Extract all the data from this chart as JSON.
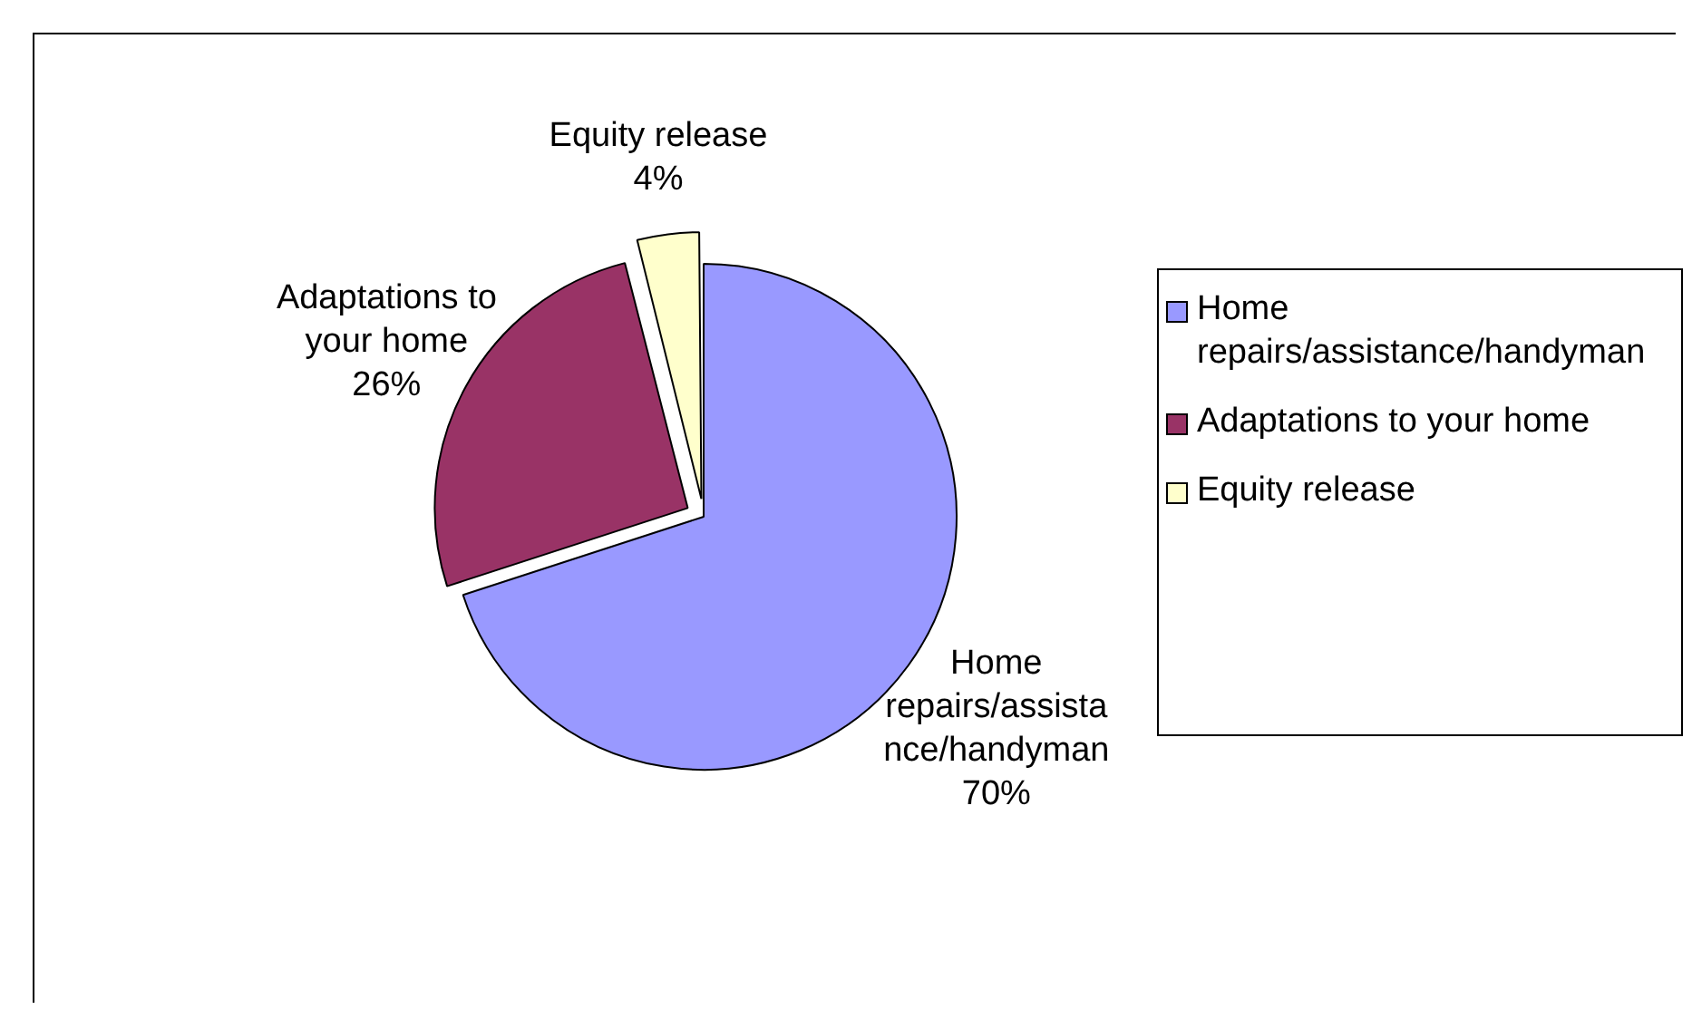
{
  "chart_data": {
    "type": "pie",
    "categories": [
      "Home repairs/assistance/handyman",
      "Adaptations to your home",
      "Equity release"
    ],
    "values": [
      70,
      26,
      4
    ],
    "colors": [
      "#9999ff",
      "#993366",
      "#ffffcc"
    ],
    "value_labels": [
      "70%",
      "26%",
      "4%"
    ],
    "legend": "right"
  }
}
